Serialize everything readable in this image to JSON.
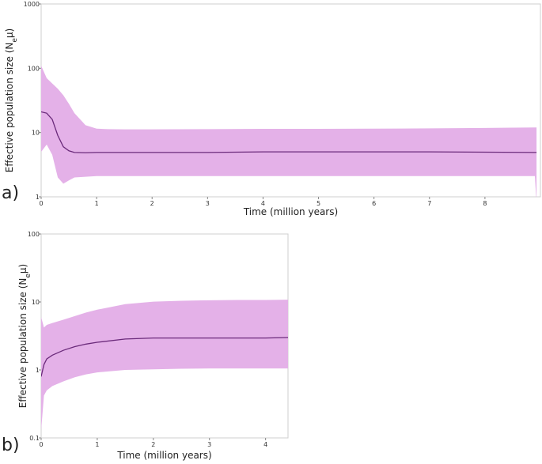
{
  "chart_data": [
    {
      "type": "area",
      "panel_label": "a)",
      "xlabel": "Time (million years)",
      "ylabel": "Effective population size (N",
      "ylabel_sub": "e",
      "ylabel_end": "μ)",
      "yscale": "log",
      "xlim": [
        0,
        9
      ],
      "ylim": [
        1,
        1000
      ],
      "xticks": [
        "0",
        "1",
        "2",
        "3",
        "4",
        "5",
        "6",
        "7",
        "8"
      ],
      "xtick_values": [
        0,
        1,
        2,
        3,
        4,
        5,
        6,
        7,
        8
      ],
      "yticks": [
        "1",
        "10",
        "100",
        "1000"
      ],
      "ytick_values": [
        1,
        10,
        100,
        1000
      ],
      "grid": false,
      "colors": {
        "band": "#e4b1e8",
        "line": "#6a2a7a"
      },
      "x": [
        0,
        0.1,
        0.2,
        0.3,
        0.4,
        0.5,
        0.6,
        0.8,
        1.0,
        1.2,
        1.5,
        2,
        3,
        4,
        5,
        6,
        7,
        8,
        8.9,
        8.93
      ],
      "series": [
        {
          "role": "median",
          "values": [
            21,
            20,
            16,
            9,
            6,
            5.2,
            4.9,
            4.85,
            4.9,
            4.9,
            4.9,
            4.9,
            4.9,
            5.0,
            5.0,
            5.0,
            5.0,
            4.95,
            4.9,
            4.9
          ]
        },
        {
          "role": "upper",
          "values": [
            110,
            70,
            58,
            48,
            38,
            28,
            20,
            13,
            11.5,
            11.3,
            11.2,
            11.2,
            11.3,
            11.4,
            11.4,
            11.5,
            11.6,
            11.8,
            12,
            12
          ]
        },
        {
          "role": "lower",
          "values": [
            5,
            6.5,
            4.5,
            2.0,
            1.6,
            1.8,
            2.0,
            2.05,
            2.1,
            2.1,
            2.1,
            2.1,
            2.1,
            2.1,
            2.1,
            2.1,
            2.1,
            2.1,
            2.1,
            0.8
          ]
        }
      ]
    },
    {
      "type": "area",
      "panel_label": "b)",
      "xlabel": "Time (million years)",
      "ylabel": "Effective population size (N",
      "ylabel_sub": "e",
      "ylabel_end": "μ)",
      "yscale": "log",
      "xlim": [
        0,
        4.4
      ],
      "ylim": [
        0.1,
        100
      ],
      "xticks": [
        "0",
        "1",
        "2",
        "3",
        "4"
      ],
      "xtick_values": [
        0,
        1,
        2,
        3,
        4
      ],
      "yticks": [
        "0.1",
        "1",
        "10",
        "100"
      ],
      "ytick_values": [
        0.1,
        1,
        10,
        100
      ],
      "grid": false,
      "colors": {
        "band": "#e4b1e8",
        "line": "#6a2a7a"
      },
      "x": [
        0,
        0.05,
        0.1,
        0.2,
        0.4,
        0.6,
        0.8,
        1.0,
        1.5,
        2,
        2.5,
        3,
        3.5,
        4,
        4.4
      ],
      "series": [
        {
          "role": "median",
          "values": [
            0.8,
            1.2,
            1.45,
            1.65,
            1.95,
            2.2,
            2.4,
            2.55,
            2.85,
            2.95,
            2.95,
            2.95,
            2.95,
            2.95,
            3.0
          ]
        },
        {
          "role": "upper",
          "values": [
            6.0,
            4.2,
            4.6,
            4.9,
            5.5,
            6.2,
            7.0,
            7.7,
            9.3,
            10.1,
            10.4,
            10.6,
            10.7,
            10.7,
            10.8
          ]
        },
        {
          "role": "lower",
          "values": [
            0.13,
            0.42,
            0.5,
            0.58,
            0.68,
            0.78,
            0.86,
            0.92,
            1.0,
            1.02,
            1.04,
            1.05,
            1.05,
            1.05,
            1.05
          ]
        }
      ]
    }
  ]
}
